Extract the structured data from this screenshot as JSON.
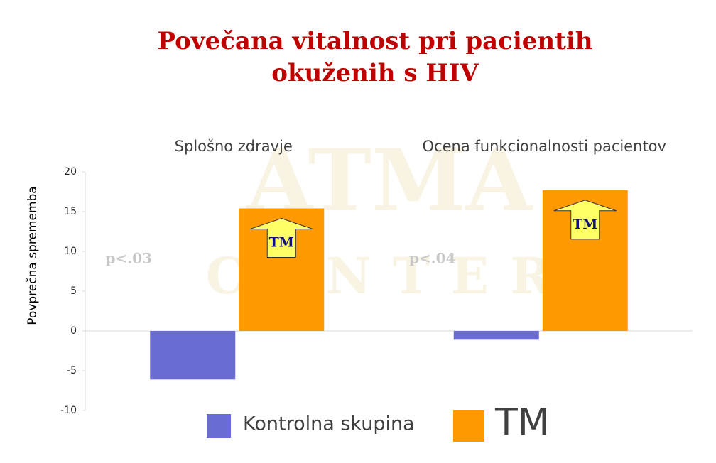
{
  "chart_data": {
    "type": "bar",
    "title": [
      "Povečana vitalnost pri pacientih",
      "okuženih s HIV"
    ],
    "y_label": "Povprečna sprememba",
    "categories": [
      "Splošno zdravje",
      "Ocena funkcionalnosti pacientov"
    ],
    "series": [
      {
        "name": "Kontrolna skupina",
        "color": "#6b6bd4",
        "values": [
          -6.1,
          -1.1
        ]
      },
      {
        "name": "TM",
        "color": "#ff9900",
        "values": [
          15.4,
          17.7
        ]
      }
    ],
    "annotations": [
      "p<.03",
      "p<.04"
    ],
    "watermark": [
      "ATMA",
      "CENTER"
    ],
    "ylim": [
      -10,
      20
    ],
    "yticks": [
      -10,
      -5,
      0,
      5,
      10,
      15,
      20
    ],
    "grid": false
  }
}
